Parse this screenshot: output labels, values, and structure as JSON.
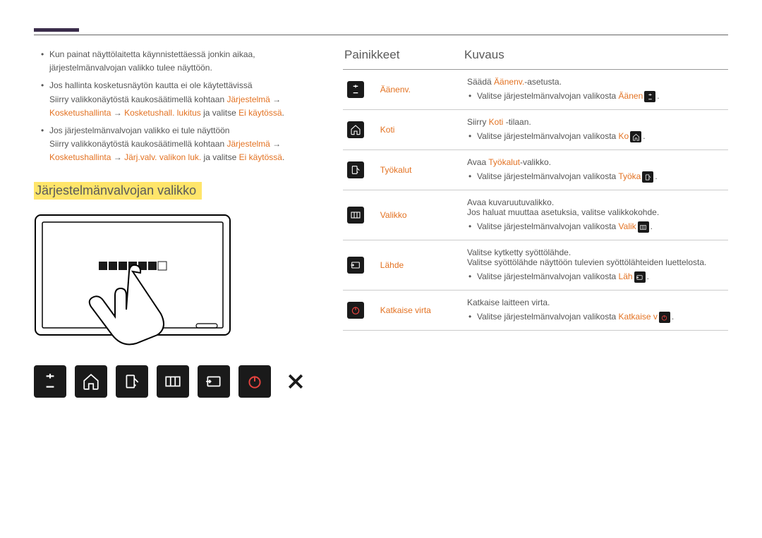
{
  "colors": {
    "accent": "#e37222",
    "highlight_bg": "#ffe56a",
    "button_bg": "#1a1a1a",
    "power_red": "#e6433f",
    "text": "#555555",
    "rule": "#999999"
  },
  "left": {
    "bullets": [
      {
        "main": "Kun painat näyttölaitetta käynnistettäessä jonkin aikaa, järjestelmänvalvojan valikko tulee näyttöön."
      },
      {
        "main": "Jos hallinta kosketusnäytön kautta ei ole käytettävissä",
        "sub_plain1": "Siirry valikkonäytöstä kaukosäätimellä kohtaan ",
        "sub_accent1": "Järjestelmä",
        "sub_plain2": " → ",
        "sub_accent2": "Kosketushallinta",
        "sub_plain3": " → ",
        "sub_accent3": "Kosketushall. lukitus",
        "sub_plain4": " ja valitse ",
        "sub_accent4": "Ei käytössä",
        "sub_plain5": "."
      },
      {
        "main": "Jos järjestelmänvalvojan valikko ei tule näyttöön",
        "sub_plain1": "Siirry valikkonäytöstä kaukosäätimellä kohtaan ",
        "sub_accent1": "Järjestelmä",
        "sub_plain2": " → ",
        "sub_accent2": "Kosketushallinta",
        "sub_plain3": " → ",
        "sub_accent3": "Järj.valv. valikon luk.",
        "sub_plain4": " ja valitse ",
        "sub_accent4": "Ei käytössä",
        "sub_plain5": "."
      }
    ],
    "section_title": "Järjestelmänvalvojan valikko"
  },
  "table": {
    "head_buttons": "Painikkeet",
    "head_desc": "Kuvaus",
    "rows": [
      {
        "icon": "plusminus",
        "label": "Äänenv.",
        "desc_pre": "Säädä ",
        "desc_accent": "Äänenv.",
        "desc_post": "-asetusta.",
        "sub_pre": "Valitse järjestelmänvalvojan valikosta ",
        "sub_accent": "Äänen",
        "sub_icon": "plusminus",
        "sub_post": "."
      },
      {
        "icon": "home",
        "label": "Koti",
        "desc_pre": "Siirry ",
        "desc_accent": "Koti",
        "desc_post": " -tilaan.",
        "sub_pre": "Valitse järjestelmänvalvojan valikosta ",
        "sub_accent": "Ko",
        "sub_icon": "home",
        "sub_post": "."
      },
      {
        "icon": "tools",
        "label": "Työkalut",
        "desc_pre": "Avaa ",
        "desc_accent": "Työkalut",
        "desc_post": "-valikko.",
        "sub_pre": "Valitse järjestelmänvalvojan valikosta ",
        "sub_accent": "Työka",
        "sub_icon": "tools",
        "sub_post": "."
      },
      {
        "icon": "menu",
        "label": "Valikko",
        "desc_line1": "Avaa kuvaruutuvalikko.",
        "desc_line2": "Jos haluat muuttaa asetuksia, valitse valikkokohde.",
        "sub_pre": "Valitse järjestelmänvalvojan valikosta ",
        "sub_accent": "Valik",
        "sub_icon": "menu",
        "sub_post": "."
      },
      {
        "icon": "source",
        "label": "Lähde",
        "desc_line1": "Valitse kytketty syöttölähde.",
        "desc_line2": "Valitse syöttölähde näyttöön tulevien syöttölähteiden luettelosta.",
        "sub_pre": "Valitse järjestelmänvalvojan valikosta ",
        "sub_accent": "Läh",
        "sub_icon": "source",
        "sub_post": "."
      },
      {
        "icon": "power",
        "label": "Katkaise virta",
        "desc_line1": "Katkaise laitteen virta.",
        "sub_pre": "Valitse järjestelmänvalvojan valikosta ",
        "sub_accent": "Katkaise v",
        "sub_icon": "power",
        "sub_post": "."
      }
    ]
  }
}
